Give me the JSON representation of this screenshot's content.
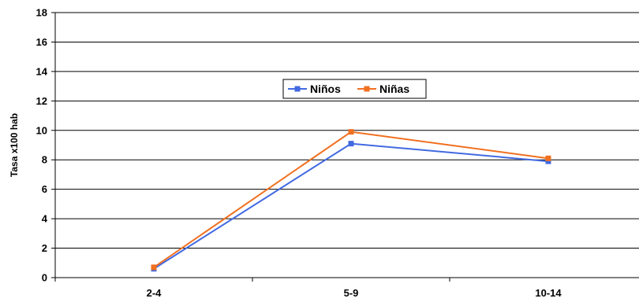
{
  "chart_data": {
    "type": "line",
    "categories": [
      "2-4",
      "5-9",
      "10-14"
    ],
    "series": [
      {
        "name": "Niños",
        "values": [
          0.6,
          9.1,
          7.9
        ],
        "color": "#4169E1"
      },
      {
        "name": "Niñas",
        "values": [
          0.7,
          9.9,
          8.1
        ],
        "color": "#F07020"
      }
    ],
    "ylabel": "Tasa x100 hab",
    "ylim": [
      0,
      18
    ],
    "yticks": [
      0,
      2,
      4,
      6,
      8,
      10,
      12,
      14,
      16,
      18
    ],
    "grid": true,
    "legend_position": "center-top"
  }
}
